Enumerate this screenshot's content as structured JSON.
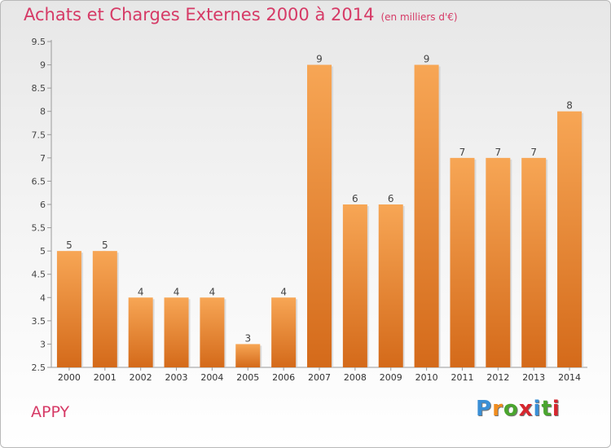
{
  "title": "Achats et Charges Externes 2000 à 2014",
  "unit_label": "(en milliers d'€)",
  "commune": "APPY",
  "brand": "Proxiti",
  "colors": {
    "accent": "#d63a66",
    "bar_light": "#f7a655",
    "bar_dark": "#d46a1a"
  },
  "chart_data": {
    "type": "bar",
    "categories": [
      "2000",
      "2001",
      "2002",
      "2003",
      "2004",
      "2005",
      "2006",
      "2007",
      "2008",
      "2009",
      "2010",
      "2011",
      "2012",
      "2013",
      "2014"
    ],
    "values": [
      5,
      5,
      4,
      4,
      4,
      3,
      4,
      9,
      6,
      6,
      9,
      7,
      7,
      7,
      8
    ],
    "data_labels": [
      "5",
      "5",
      "4",
      "4",
      "4",
      "3",
      "4",
      "9",
      "6",
      "6",
      "9",
      "7",
      "7",
      "7",
      "8"
    ],
    "yticks": [
      "2.5",
      "3",
      "3.5",
      "4",
      "4.5",
      "5",
      "5.5",
      "6",
      "6.5",
      "7",
      "7.5",
      "8",
      "8.5",
      "9",
      "9.5"
    ],
    "ylim": [
      2.5,
      9.5
    ],
    "grid": false,
    "legend": "none"
  }
}
